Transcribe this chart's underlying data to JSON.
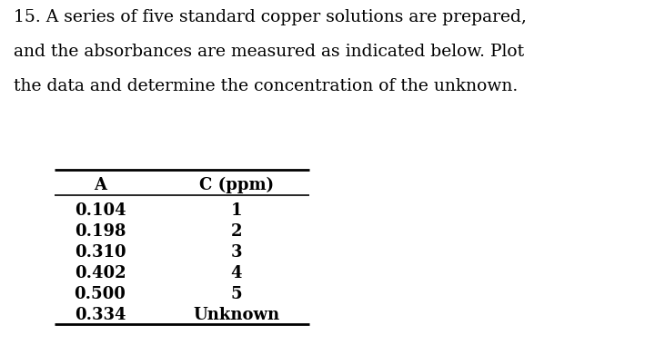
{
  "title_line1": "15. A series of five standard copper solutions are prepared,",
  "title_line2": "and the absorbances are measured as indicated below. Plot",
  "title_line3": "the data and determine the concentration of the unknown.",
  "col1_header": "A",
  "col2_header": "C (ppm)",
  "absorbance_values": [
    "0.104",
    "0.198",
    "0.310",
    "0.402",
    "0.500",
    "0.334"
  ],
  "concentration_values": [
    "1",
    "2",
    "3",
    "4",
    "5",
    "Unknown"
  ],
  "background_color": "#ffffff",
  "text_color": "#000000",
  "font_size_title": 13.5,
  "font_size_table": 13.0,
  "font_family": "DejaVu Serif"
}
